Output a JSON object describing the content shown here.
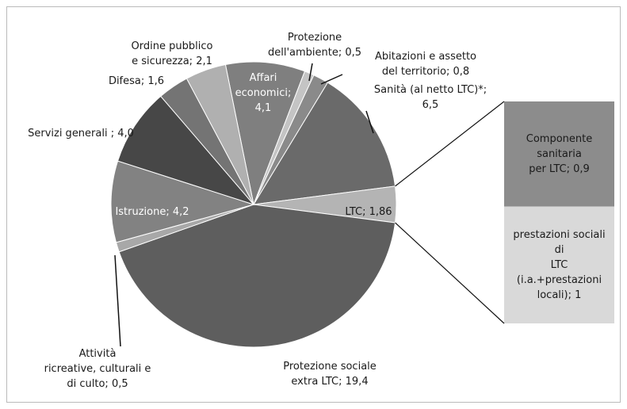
{
  "chart_data": {
    "type": "pie",
    "values": [
      4.1,
      0.5,
      0.8,
      6.5,
      1.86,
      19.4,
      0.5,
      4.2,
      4.0,
      1.6,
      2.1
    ],
    "value_labels": [
      "Affari\neconomici;\n4,1",
      "Protezione\ndell'ambiente; 0,5",
      "Abitazioni e assetto\ndel territorio; 0,8",
      "Sanità (al netto LTC)*;\n6,5",
      "LTC; 1,86",
      "Protezione sociale\nextra LTC; 19,4",
      "Attività\nricreative, culturali e\ndi culto; 0,5",
      "Istruzione; 4,2",
      "Servizi generali ; 4,0",
      "Difesa; 1,6",
      "Ordine pubblico\ne sicurezza; 2,1"
    ],
    "colors": [
      "#7f7f7f",
      "#c4c4c4",
      "#8a8a8a",
      "#6a6a6a",
      "#b4b4b4",
      "#5e5e5e",
      "#a8a8a8",
      "#828282",
      "#474747",
      "#747474",
      "#b0b0b0"
    ],
    "bar": {
      "values": [
        0.9,
        1
      ],
      "value_labels": [
        "Componente sanitaria\nper LTC; 0,9",
        "prestazioni sociali di\nLTC (i.a.+prestazioni\nlocali); 1"
      ],
      "colors": [
        "#8c8c8c",
        "#d9d9d9"
      ]
    }
  }
}
